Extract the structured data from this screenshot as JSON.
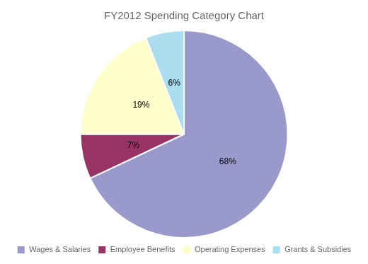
{
  "chart_data": {
    "type": "pie",
    "title": "FY2012 Spending Category Chart",
    "categories": [
      "Wages & Salaries",
      "Employee Benefits",
      "Operating Expenses",
      "Grants & Subsidies"
    ],
    "values": [
      68,
      7,
      19,
      6
    ],
    "value_labels": [
      "68%",
      "7%",
      "19%",
      "6%"
    ],
    "colors": [
      "#9999CC",
      "#993366",
      "#FFFFCC",
      "#AADDEE"
    ],
    "data_labels": true,
    "legend": "bottom"
  }
}
